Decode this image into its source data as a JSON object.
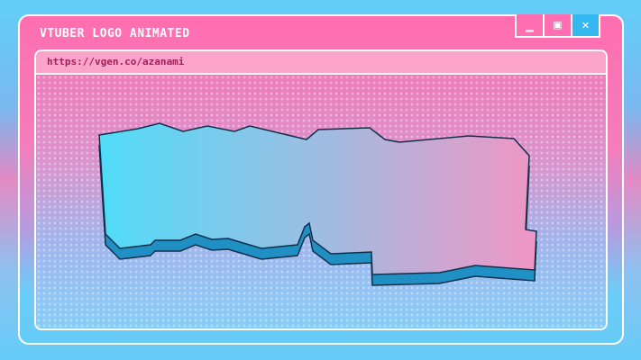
{
  "window": {
    "title": "VTUBER LOGO ANIMATED",
    "url": "https://vgen.co/azanami",
    "controls": {
      "minimize": "minimize-icon",
      "maximize": "maximize-icon",
      "close": "close-icon"
    }
  },
  "colors": {
    "frame": "#ff6eb0",
    "url_bar": "#fca3c9",
    "url_text": "#a0205e",
    "close": "#33b8f0",
    "logo_left": "#4fdcf8",
    "logo_right": "#f096c4",
    "logo_shadow": "#1f8fc4"
  }
}
